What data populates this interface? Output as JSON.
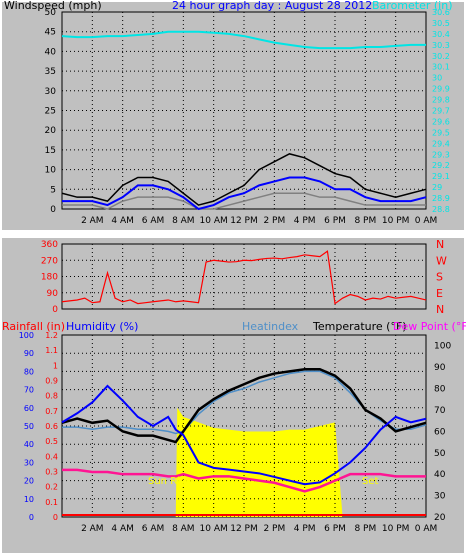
{
  "colors": {
    "page_bg": "#ffffff",
    "frame_bg": "#c0c0c0",
    "plot_bg": "#c0c0c0",
    "grid": "#000000",
    "wind_gust": "#000000",
    "wind_avg": "#0000ff",
    "wind_min": "#808080",
    "barometer": "#00e5e5",
    "wind_dir": "#ff0000",
    "rainfall_axis": "#ff0000",
    "humidity": "#0000ff",
    "heatindex": "#4f8fc8",
    "temperature": "#000000",
    "dewpoint": "#ff00ff",
    "solar": "#ffff00",
    "dewpoint_line": "#ff1493",
    "rain_line": "#ff0000",
    "sun_text": "#ffff00"
  },
  "chart_data": [
    {
      "type": "line",
      "title": "24 hour graph day : August 28 2012",
      "ylabel_left": "Windspeed (mph)",
      "ylabel_right": "Barometer (in)",
      "x_ticks": [
        "2 AM",
        "4 AM",
        "6 AM",
        "8 AM",
        "10 AM",
        "12 PM",
        "2 PM",
        "4 PM",
        "6 PM",
        "8 PM",
        "10 PM",
        "0 AM"
      ],
      "y_left_ticks": [
        0,
        5,
        10,
        15,
        20,
        25,
        30,
        35,
        40,
        45,
        50
      ],
      "y_left_range": [
        0,
        50
      ],
      "y_right_ticks": [
        "28.8",
        "28.9",
        "29",
        "29.1",
        "29.2",
        "29.3",
        "29.4",
        "29.5",
        "29.6",
        "29.7",
        "29.8",
        "29.9",
        "30",
        "30.1",
        "30.2",
        "30.3",
        "30.4",
        "30.5",
        "30.6"
      ],
      "y_right_range": [
        28.8,
        30.6
      ],
      "grid": true,
      "series": [
        {
          "x": [
            0,
            1,
            2,
            3,
            4,
            5,
            6,
            7,
            8,
            9,
            10,
            11,
            12,
            13,
            14,
            15,
            16,
            17,
            18,
            19,
            20,
            21,
            22,
            23,
            24
          ],
          "values": [
            4,
            3,
            3,
            2,
            6,
            8,
            8,
            7,
            4,
            1,
            2,
            4,
            6,
            10,
            12,
            14,
            13,
            11,
            9,
            8,
            5,
            4,
            3,
            4,
            5
          ]
        },
        {
          "x": [
            0,
            1,
            2,
            3,
            4,
            5,
            6,
            7,
            8,
            9,
            10,
            11,
            12,
            13,
            14,
            15,
            16,
            17,
            18,
            19,
            20,
            21,
            22,
            23,
            24
          ],
          "values": [
            2,
            2,
            2,
            1,
            3,
            6,
            6,
            5,
            3,
            0,
            1,
            3,
            4,
            6,
            7,
            8,
            8,
            7,
            5,
            5,
            3,
            2,
            2,
            2,
            3
          ]
        },
        {
          "x": [
            0,
            1,
            2,
            3,
            4,
            5,
            6,
            7,
            8,
            9,
            10,
            11,
            12,
            13,
            14,
            15,
            16,
            17,
            18,
            19,
            20,
            21,
            22,
            23,
            24
          ],
          "values": [
            1,
            1,
            1,
            0,
            2,
            3,
            3,
            3,
            2,
            0,
            0,
            1,
            2,
            3,
            4,
            4,
            4,
            3,
            3,
            2,
            1,
            1,
            1,
            1,
            1
          ]
        },
        {
          "x": [
            0,
            1,
            2,
            3,
            4,
            5,
            6,
            7,
            8,
            9,
            10,
            11,
            12,
            13,
            14,
            15,
            16,
            17,
            18,
            19,
            20,
            21,
            22,
            23,
            24
          ],
          "values": [
            30.38,
            30.37,
            30.37,
            30.38,
            30.38,
            30.39,
            30.4,
            30.42,
            30.42,
            30.42,
            30.41,
            30.4,
            30.38,
            30.35,
            30.32,
            30.3,
            30.28,
            30.27,
            30.27,
            30.27,
            30.28,
            30.28,
            30.29,
            30.3,
            30.3
          ]
        }
      ]
    },
    {
      "type": "line",
      "y_left_ticks": [
        0,
        90,
        180,
        270,
        360
      ],
      "y_left_range": [
        0,
        360
      ],
      "y_right_ticks": [
        "N",
        "W",
        "S",
        "E",
        "N"
      ],
      "series": [
        {
          "x": [
            0,
            0.5,
            1,
            1.5,
            2,
            2.5,
            3,
            3.5,
            4,
            4.5,
            5,
            5.5,
            6,
            6.5,
            7,
            7.5,
            8,
            8.5,
            9,
            9.5,
            10,
            10.5,
            11,
            11.5,
            12,
            12.5,
            13,
            13.5,
            14,
            14.5,
            15,
            15.5,
            16,
            16.5,
            17,
            17.5,
            18,
            18.5,
            19,
            19.5,
            20,
            20.5,
            21,
            21.5,
            22,
            22.5,
            23,
            23.5,
            24
          ],
          "values": [
            40,
            45,
            50,
            60,
            35,
            40,
            200,
            60,
            40,
            50,
            30,
            35,
            40,
            45,
            50,
            40,
            45,
            40,
            35,
            260,
            270,
            265,
            260,
            262,
            270,
            268,
            275,
            280,
            282,
            278,
            285,
            290,
            300,
            295,
            290,
            320,
            30,
            60,
            80,
            70,
            50,
            60,
            55,
            70,
            60,
            65,
            70,
            60,
            50
          ]
        }
      ]
    },
    {
      "type": "line",
      "ylabel_left_1": "Rainfall (in)",
      "ylabel_left_2": "Humidity (%)",
      "ylabel_center": "Heatindex",
      "ylabel_right_1": "Temperature (°F)",
      "ylabel_right_2": "Dew Point (°F)",
      "annotation_sunrise": "Sun Rise",
      "annotation_sunset": "Set",
      "x_ticks": [
        "2 AM",
        "4 AM",
        "6 AM",
        "8 AM",
        "10 AM",
        "12 PM",
        "2 PM",
        "4 PM",
        "6 PM",
        "8 PM",
        "10 PM",
        "0 AM"
      ],
      "y_humidity_ticks": [
        0,
        10,
        20,
        30,
        40,
        50,
        60,
        70,
        80,
        90,
        100
      ],
      "y_rain_ticks": [
        "0",
        "0.1",
        "0.2",
        "0.3",
        "0.4",
        "0.5",
        "0.6",
        "0.7",
        "0.8",
        "0.9",
        "1",
        "1.1",
        "1.2"
      ],
      "y_temp_ticks": [
        20,
        30,
        40,
        50,
        60,
        70,
        80,
        90,
        100
      ],
      "y_temp_range": [
        20,
        105
      ],
      "y_humidity_range": [
        0,
        100
      ],
      "grid": true,
      "series": [
        {
          "x": [
            0,
            1,
            2,
            3,
            4,
            5,
            6,
            7,
            7.5,
            8,
            9,
            10,
            11,
            12,
            13,
            14,
            15,
            16,
            17,
            18,
            19,
            20,
            21,
            22,
            23,
            24
          ],
          "values": [
            64,
            66,
            64,
            65,
            60,
            58,
            58,
            56,
            55,
            60,
            70,
            75,
            79,
            82,
            85,
            87,
            88,
            89,
            89,
            86,
            80,
            70,
            66,
            60,
            62,
            64
          ]
        },
        {
          "x": [
            0,
            1,
            2,
            3,
            4,
            5,
            6,
            7,
            7.5,
            8,
            9,
            10,
            11,
            12,
            13,
            14,
            15,
            16,
            17,
            18,
            19,
            20,
            21,
            22,
            23,
            24
          ],
          "values": [
            62,
            62,
            61,
            62,
            62,
            61,
            61,
            60,
            59,
            60,
            68,
            74,
            78,
            80,
            83,
            85,
            87,
            88,
            88,
            85,
            78,
            70,
            65,
            61,
            61,
            63
          ]
        },
        {
          "x": [
            0,
            1,
            2,
            3,
            4,
            5,
            6,
            7,
            7.5,
            8,
            9,
            10,
            11,
            12,
            13,
            14,
            15,
            16,
            17,
            18,
            19,
            20,
            21,
            22,
            23,
            24
          ],
          "values": [
            42,
            42,
            41,
            41,
            40,
            40,
            40,
            39,
            39,
            40,
            38,
            39,
            39,
            38,
            37,
            36,
            34,
            32,
            34,
            37,
            40,
            40,
            40,
            39,
            39,
            39
          ]
        },
        {
          "x": [
            0,
            1,
            2,
            3,
            4,
            5,
            6,
            7,
            7.5,
            8,
            9,
            10,
            11,
            12,
            13,
            14,
            15,
            16,
            17,
            18,
            19,
            20,
            21,
            22,
            23,
            24
          ],
          "values": [
            52,
            57,
            63,
            72,
            64,
            55,
            50,
            55,
            48,
            45,
            30,
            27,
            26,
            25,
            24,
            22,
            20,
            18,
            19,
            24,
            30,
            38,
            48,
            55,
            52,
            54
          ]
        },
        {
          "x": [
            0,
            1,
            2,
            3,
            4,
            5,
            6,
            7,
            7.5,
            7.6,
            8,
            9,
            10,
            11,
            12,
            13,
            14,
            15,
            16,
            17,
            18,
            18.5,
            19,
            20,
            21,
            22,
            23,
            24
          ],
          "values": [
            0,
            0,
            0,
            0,
            0,
            0,
            0,
            0,
            0,
            60,
            55,
            52,
            49,
            48,
            47,
            47,
            47,
            48,
            48,
            50,
            52,
            0,
            0,
            0,
            0,
            0,
            0,
            0
          ]
        },
        {
          "x": [
            0,
            24
          ],
          "values": [
            0,
            0
          ]
        }
      ]
    }
  ]
}
